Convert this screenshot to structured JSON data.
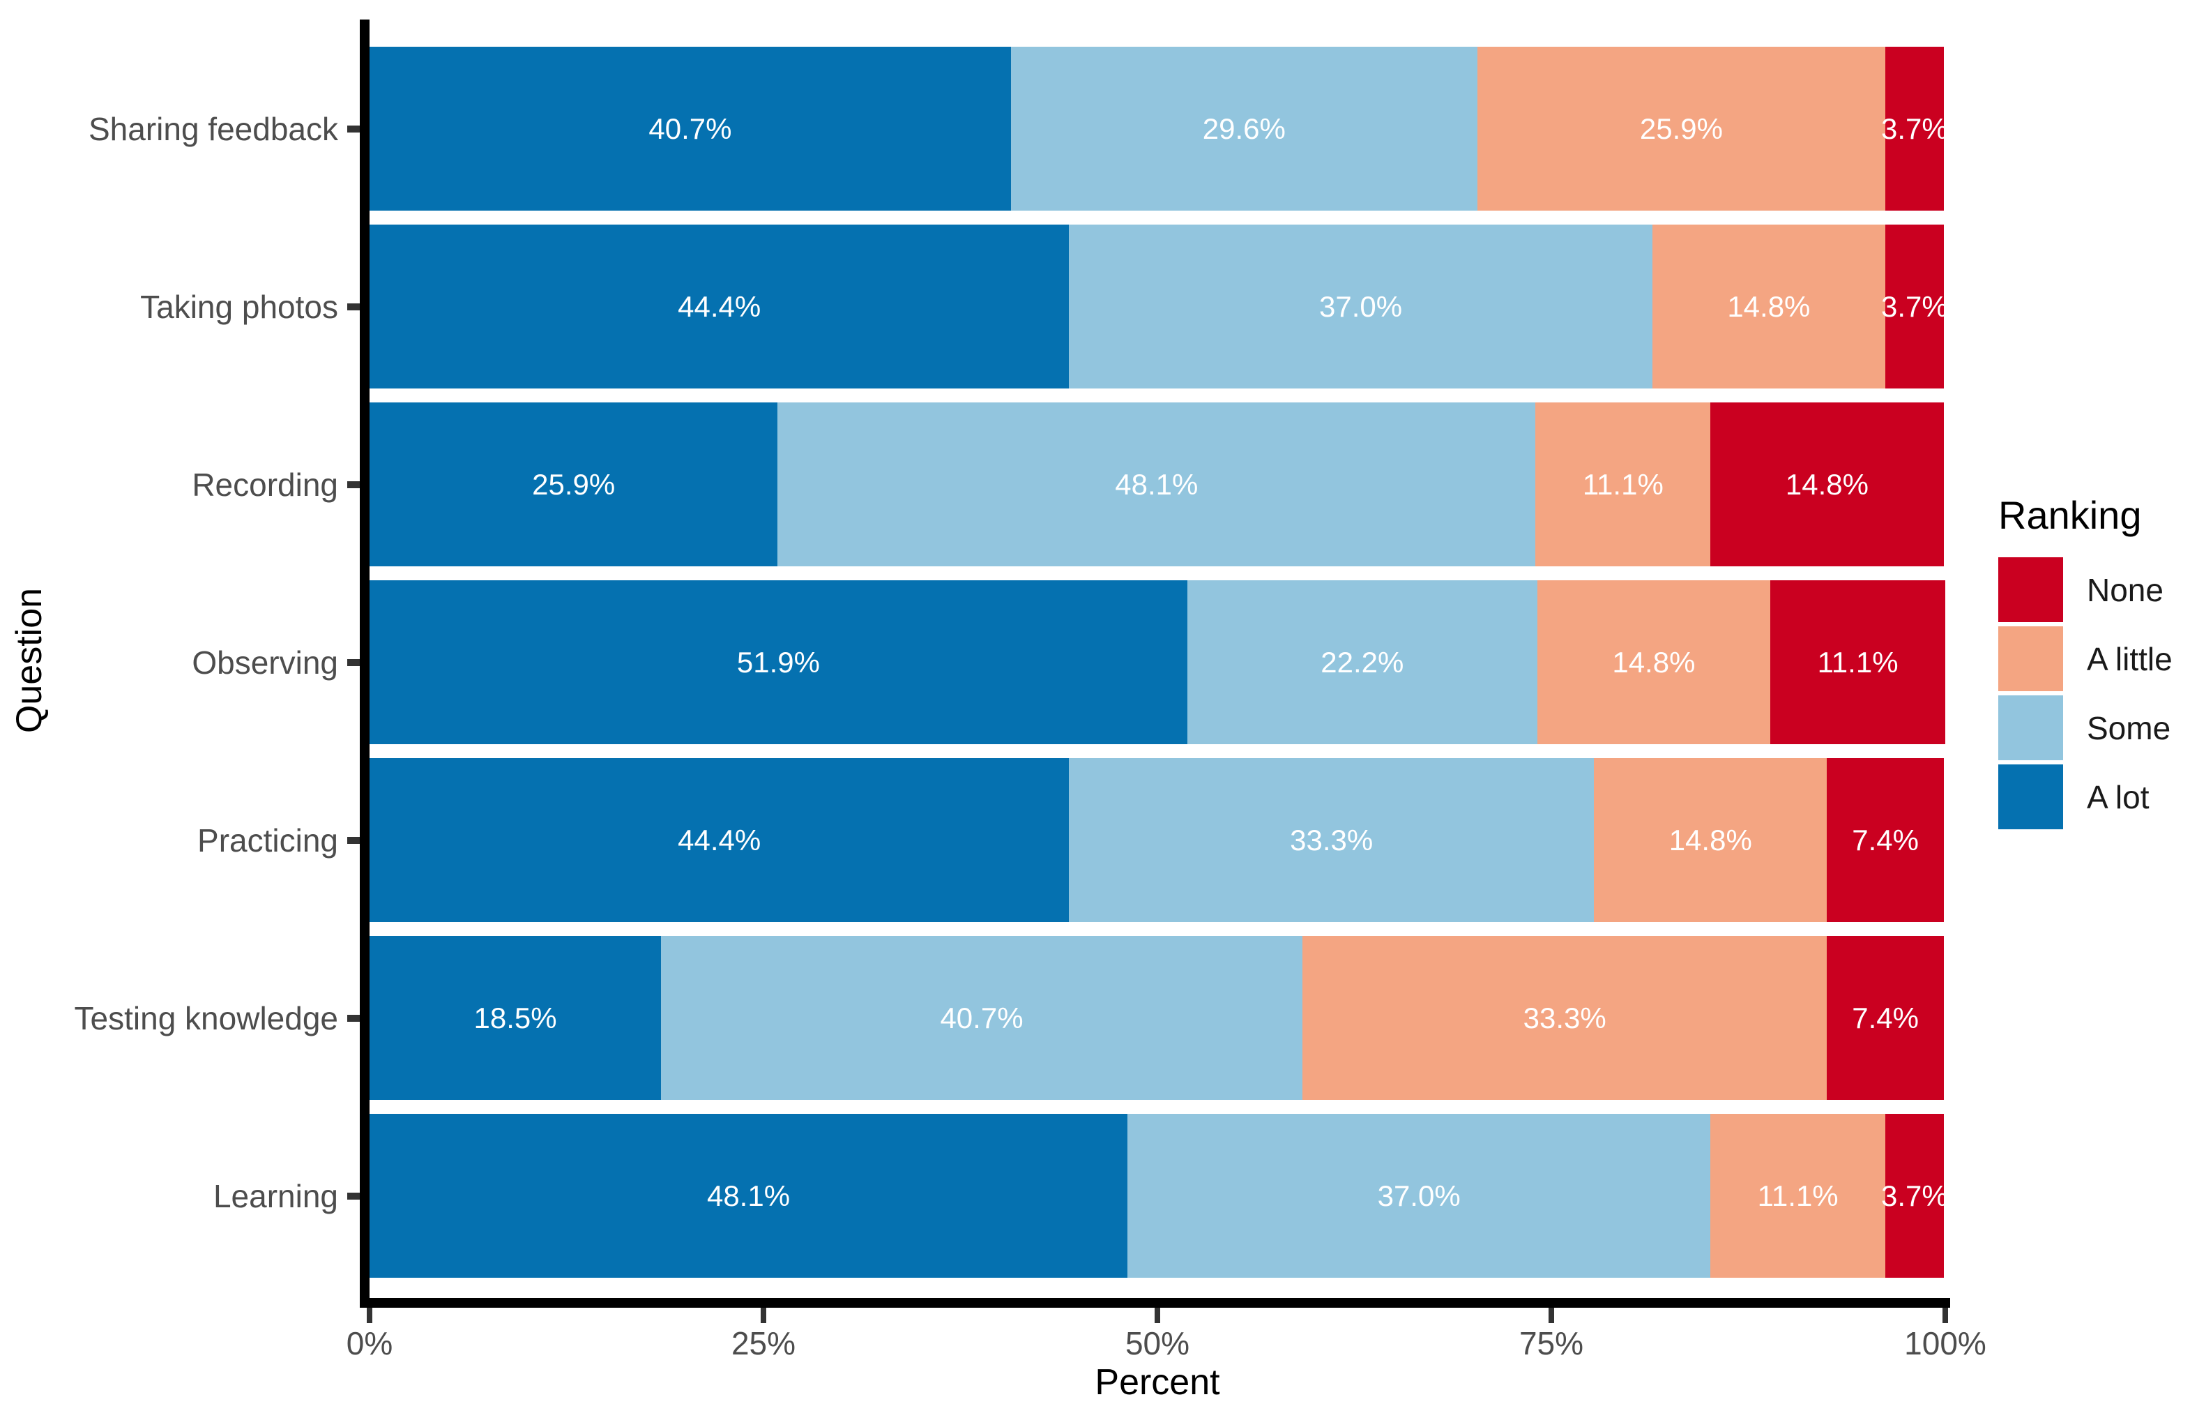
{
  "chart_data": {
    "type": "bar",
    "orientation": "horizontal",
    "stacked": true,
    "title": "",
    "xlabel": "Percent",
    "ylabel": "Question",
    "xlim": [
      0,
      100
    ],
    "grid": false,
    "x_tick_values": [
      0,
      25,
      50,
      75,
      100
    ],
    "x_tick_labels": [
      "0%",
      "25%",
      "50%",
      "75%",
      "100%"
    ],
    "legend": {
      "title": "Ranking",
      "position": "right",
      "items": [
        {
          "label": "None",
          "color": "#CA0020"
        },
        {
          "label": "A little",
          "color": "#F4A582"
        },
        {
          "label": "Some",
          "color": "#92C5DE"
        },
        {
          "label": "A lot",
          "color": "#0571B0"
        }
      ]
    },
    "stack_order": [
      "A lot",
      "Some",
      "A little",
      "None"
    ],
    "series_colors": {
      "A lot": "#0571B0",
      "Some": "#92C5DE",
      "A little": "#F4A582",
      "None": "#CA0020"
    },
    "categories": [
      "Sharing feedback",
      "Taking photos",
      "Recording",
      "Observing",
      "Practicing",
      "Testing knowledge",
      "Learning"
    ],
    "series": [
      {
        "name": "A lot",
        "values": [
          40.7,
          44.4,
          25.9,
          51.9,
          44.4,
          18.5,
          48.1
        ]
      },
      {
        "name": "Some",
        "values": [
          29.6,
          37.0,
          48.1,
          22.2,
          33.3,
          40.7,
          37.0
        ]
      },
      {
        "name": "A little",
        "values": [
          25.9,
          14.8,
          11.1,
          14.8,
          14.8,
          33.3,
          11.1
        ]
      },
      {
        "name": "None",
        "values": [
          3.7,
          3.7,
          14.8,
          11.1,
          7.4,
          7.4,
          3.7
        ]
      }
    ],
    "bar_labels": [
      [
        "40.7%",
        "29.6%",
        "25.9%",
        "3.7%"
      ],
      [
        "44.4%",
        "37.0%",
        "14.8%",
        "3.7%"
      ],
      [
        "25.9%",
        "48.1%",
        "11.1%",
        "14.8%"
      ],
      [
        "51.9%",
        "22.2%",
        "14.8%",
        "11.1%"
      ],
      [
        "44.4%",
        "33.3%",
        "14.8%",
        "7.4%"
      ],
      [
        "18.5%",
        "40.7%",
        "33.3%",
        "7.4%"
      ],
      [
        "48.1%",
        "37.0%",
        "11.1%",
        "3.7%"
      ]
    ]
  }
}
